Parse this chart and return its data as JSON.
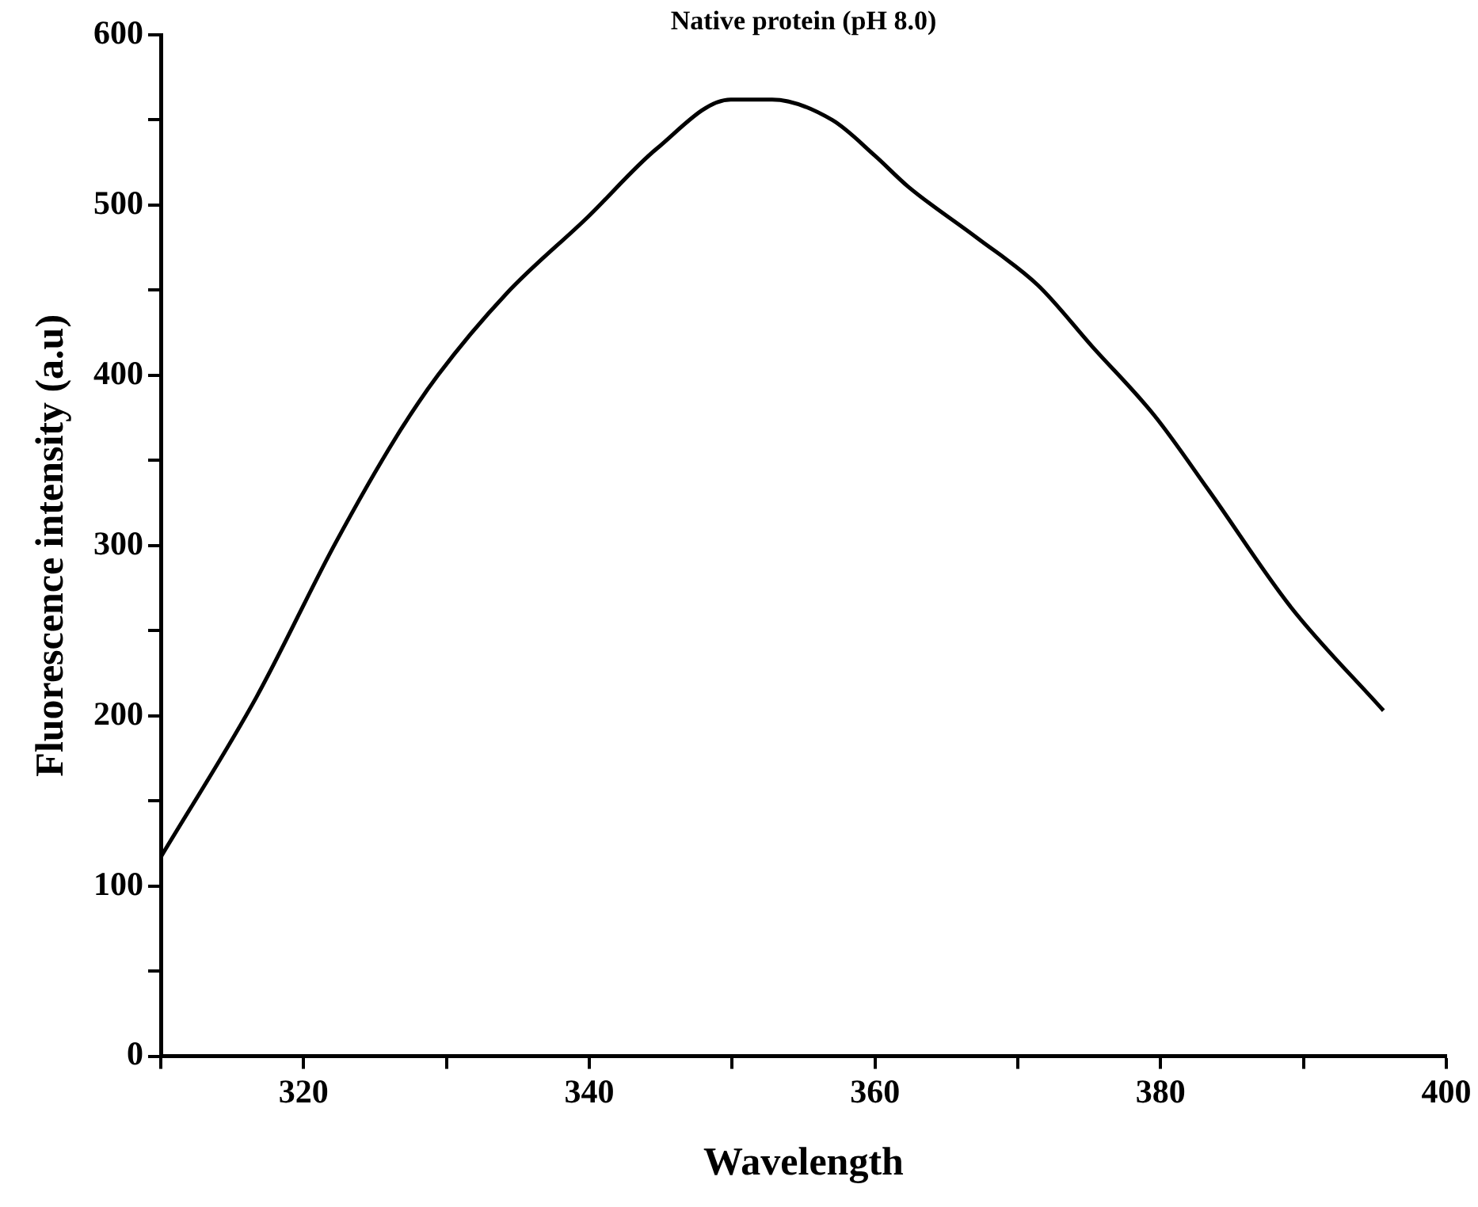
{
  "chart_data": {
    "type": "line",
    "xlabel": "Wavelength",
    "ylabel": "Fluorescence intensity (a.u)",
    "annotations": [
      "Native protein (pH 8.0)"
    ],
    "xlim": [
      310,
      400
    ],
    "xticks": [
      {
        "value": 310,
        "label": null
      },
      320,
      {
        "value": 330,
        "label": null
      },
      340,
      {
        "value": 350,
        "label": null
      },
      360,
      {
        "value": 370,
        "label": null
      },
      380,
      {
        "value": 390,
        "label": null
      },
      400
    ],
    "ylim": [
      0,
      600
    ],
    "yticks": [
      0,
      {
        "value": 50,
        "label": null
      },
      100,
      {
        "value": 150,
        "label": null
      },
      200,
      {
        "value": 250,
        "label": null
      },
      300,
      {
        "value": 350,
        "label": null
      },
      400,
      {
        "value": 450,
        "label": null
      },
      500,
      {
        "value": 550,
        "label": null
      },
      600
    ],
    "grid": false,
    "legend": false,
    "marker": "none",
    "line_style": "solid",
    "series": [
      {
        "color": "#000000",
        "x": [
          310,
          316.7,
          322.2,
          326.5,
          329.4,
          334.2,
          339.9,
          344.7,
          349.9,
          352.8,
          357,
          360,
          362.3,
          367.1,
          371.4,
          375.2,
          379.6,
          383.4,
          389.1,
          395.6
        ],
        "values": [
          117,
          211,
          301,
          364,
          400,
          448,
          493,
          533,
          562,
          562,
          550,
          529,
          511,
          481,
          453,
          417,
          376,
          332,
          264,
          203
        ]
      }
    ]
  }
}
